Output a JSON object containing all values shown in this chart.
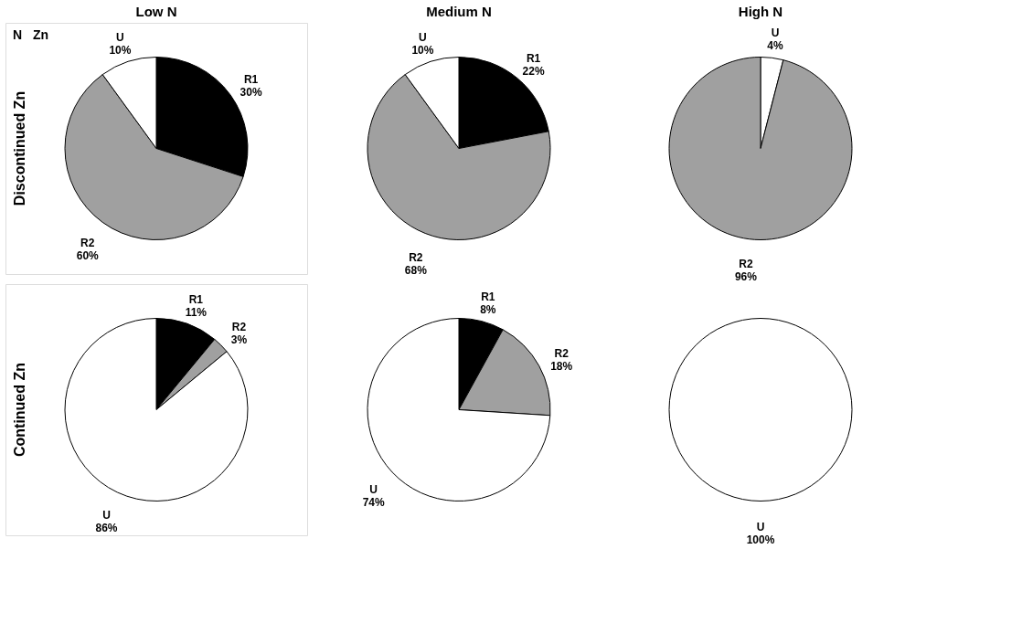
{
  "chart_data": [
    {
      "type": "pie",
      "title": "Low N",
      "ylabel": "Discontinued Zn",
      "annotations": [
        "N",
        "Zn"
      ],
      "categories": [
        "R1",
        "R2",
        "U"
      ],
      "values": [
        30,
        60,
        10
      ],
      "colors": [
        "#000000",
        "#a0a0a0",
        "#ffffff"
      ],
      "value_labels": [
        "30%",
        "60%",
        "10%"
      ]
    },
    {
      "type": "pie",
      "title": "Medium N",
      "categories": [
        "R1",
        "R2",
        "U"
      ],
      "values": [
        22,
        68,
        10
      ],
      "colors": [
        "#000000",
        "#a0a0a0",
        "#ffffff"
      ],
      "value_labels": [
        "22%",
        "68%",
        "10%"
      ]
    },
    {
      "type": "pie",
      "title": "High N",
      "categories": [
        "U",
        "R2"
      ],
      "values": [
        4,
        96
      ],
      "colors": [
        "#ffffff",
        "#a0a0a0"
      ],
      "value_labels": [
        "4%",
        "96%"
      ]
    },
    {
      "type": "pie",
      "ylabel": "Continued Zn",
      "categories": [
        "R1",
        "R2",
        "U"
      ],
      "values": [
        11,
        3,
        86
      ],
      "colors": [
        "#000000",
        "#a0a0a0",
        "#ffffff"
      ],
      "value_labels": [
        "11%",
        "3%",
        "86%"
      ]
    },
    {
      "type": "pie",
      "categories": [
        "R1",
        "R2",
        "U"
      ],
      "values": [
        8,
        18,
        74
      ],
      "colors": [
        "#000000",
        "#a0a0a0",
        "#ffffff"
      ],
      "value_labels": [
        "8%",
        "18%",
        "74%"
      ]
    },
    {
      "type": "pie",
      "categories": [
        "U"
      ],
      "values": [
        100
      ],
      "colors": [
        "#ffffff"
      ],
      "value_labels": [
        "100%"
      ]
    }
  ]
}
